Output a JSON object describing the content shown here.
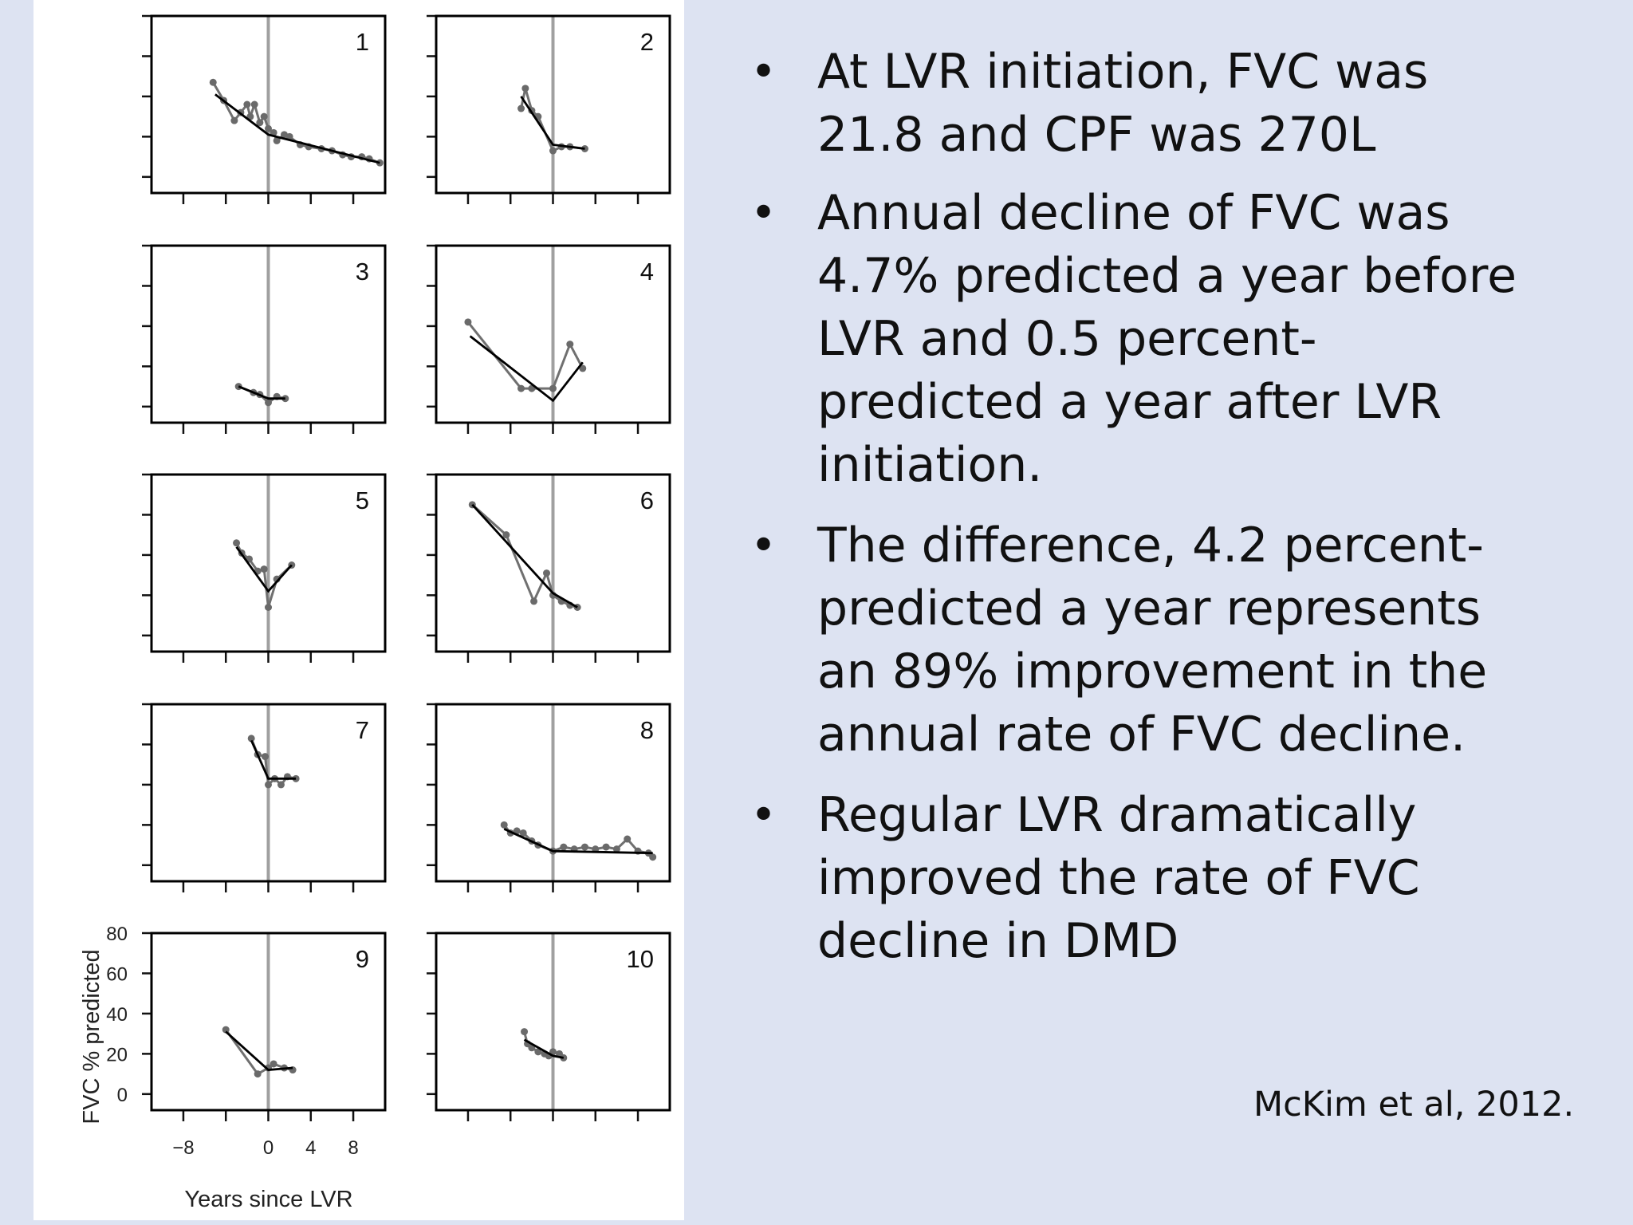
{
  "slide": {
    "bullets": [
      "At LVR initiation, FVC was 21.8 and CPF was 270L",
      "Annual decline of FVC was 4.7% predicted a year before LVR and 0.5 percent-predicted a year after LVR initiation.",
      "The difference, 4.2 percent-predicted a year represents an 89% improvement in the annual rate of FVC decline.",
      "Regular LVR dramatically improved the rate of FVC decline in DMD"
    ],
    "bullet_symbol": "•",
    "citation": "McKim et al, 2012."
  },
  "chart_data": {
    "type": "line",
    "layout": "small-multiples 5 rows x 2 columns",
    "xlabel": "Years since LVR",
    "ylabel": "FVC % predicted",
    "xlim": [
      -11,
      11
    ],
    "ylim": [
      -8,
      80
    ],
    "x_ticks": [
      -8,
      0,
      4,
      8
    ],
    "y_ticks": [
      0,
      20,
      40,
      60,
      80
    ],
    "x_tick_labels": [
      "−8",
      "0",
      "4",
      "8"
    ],
    "y_tick_labels": [
      "0",
      "20",
      "40",
      "60",
      "80"
    ],
    "reference_line_x": 0,
    "panels": [
      {
        "label": "1",
        "points": [
          [
            -5.2,
            47
          ],
          [
            -4.2,
            38
          ],
          [
            -3.2,
            28
          ],
          [
            -2.6,
            32
          ],
          [
            -2,
            36
          ],
          [
            -1.7,
            30
          ],
          [
            -1.3,
            36
          ],
          [
            -0.8,
            27
          ],
          [
            -0.4,
            30
          ],
          [
            0,
            24
          ],
          [
            0.5,
            22
          ],
          [
            0.8,
            18
          ],
          [
            1.5,
            21
          ],
          [
            2,
            20
          ],
          [
            3,
            16
          ],
          [
            3.8,
            15
          ],
          [
            5,
            14
          ],
          [
            6,
            13
          ],
          [
            7,
            11
          ],
          [
            7.8,
            10
          ],
          [
            8.8,
            10
          ],
          [
            9.5,
            9
          ],
          [
            10.5,
            7
          ]
        ],
        "fit": [
          [
            -5,
            41
          ],
          [
            0,
            21
          ],
          [
            10.5,
            7
          ]
        ]
      },
      {
        "label": "2",
        "points": [
          [
            -3,
            34
          ],
          [
            -2.6,
            44
          ],
          [
            -2,
            33
          ],
          [
            -1.4,
            30
          ],
          [
            0,
            13
          ],
          [
            0.8,
            15
          ],
          [
            1.6,
            15
          ],
          [
            3,
            14
          ]
        ],
        "fit": [
          [
            -3,
            40
          ],
          [
            0,
            16
          ],
          [
            3,
            14
          ]
        ]
      },
      {
        "label": "3",
        "points": [
          [
            -2.8,
            10
          ],
          [
            -1.4,
            7
          ],
          [
            -0.8,
            6
          ],
          [
            0,
            2
          ],
          [
            0.8,
            5
          ],
          [
            1.6,
            4
          ]
        ],
        "fit": [
          [
            -2.8,
            10
          ],
          [
            0,
            4
          ],
          [
            1.6,
            4
          ]
        ]
      },
      {
        "label": "4",
        "points": [
          [
            -8,
            42
          ],
          [
            -3,
            9
          ],
          [
            -2,
            9
          ],
          [
            0,
            9
          ],
          [
            1.6,
            31
          ],
          [
            2.8,
            19
          ]
        ],
        "fit": [
          [
            -7.8,
            35
          ],
          [
            0,
            3
          ],
          [
            2.8,
            22
          ]
        ]
      },
      {
        "label": "5",
        "points": [
          [
            -3,
            46
          ],
          [
            -2.5,
            41
          ],
          [
            -1.8,
            38
          ],
          [
            -1,
            32
          ],
          [
            -0.4,
            33
          ],
          [
            0,
            14
          ],
          [
            0.8,
            28
          ],
          [
            2.2,
            35
          ]
        ],
        "fit": [
          [
            -3,
            44
          ],
          [
            0,
            22
          ],
          [
            2.2,
            35
          ]
        ]
      },
      {
        "label": "6",
        "points": [
          [
            -7.6,
            65
          ],
          [
            -4.4,
            50
          ],
          [
            -1.8,
            17
          ],
          [
            -0.6,
            31
          ],
          [
            0,
            20
          ],
          [
            0.8,
            17
          ],
          [
            1.6,
            15
          ],
          [
            2.3,
            14
          ]
        ],
        "fit": [
          [
            -7.6,
            65
          ],
          [
            0,
            21
          ],
          [
            2.3,
            14
          ]
        ]
      },
      {
        "label": "7",
        "points": [
          [
            -1.6,
            63
          ],
          [
            -1,
            55
          ],
          [
            -0.3,
            54
          ],
          [
            0,
            40
          ],
          [
            0.6,
            43
          ],
          [
            1.2,
            40
          ],
          [
            1.8,
            44
          ],
          [
            2.6,
            43
          ]
        ],
        "fit": [
          [
            -1.6,
            62
          ],
          [
            0,
            43
          ],
          [
            2.6,
            43
          ]
        ]
      },
      {
        "label": "8",
        "points": [
          [
            -4.6,
            20
          ],
          [
            -4,
            16
          ],
          [
            -3.4,
            17
          ],
          [
            -2.8,
            16
          ],
          [
            -2,
            12
          ],
          [
            -1.4,
            10
          ],
          [
            0,
            7
          ],
          [
            1,
            9
          ],
          [
            2,
            8
          ],
          [
            3,
            9
          ],
          [
            4,
            8
          ],
          [
            5,
            9
          ],
          [
            6,
            8
          ],
          [
            7,
            13
          ],
          [
            8,
            7
          ],
          [
            9,
            6
          ],
          [
            9.4,
            4
          ]
        ],
        "fit": [
          [
            -4.6,
            18
          ],
          [
            0,
            7
          ],
          [
            9.4,
            6
          ]
        ]
      },
      {
        "label": "9",
        "points": [
          [
            -4,
            32
          ],
          [
            -1,
            10
          ],
          [
            0,
            13
          ],
          [
            0.5,
            15
          ],
          [
            1.5,
            13
          ],
          [
            2.3,
            12
          ]
        ],
        "fit": [
          [
            -4,
            31
          ],
          [
            0,
            12
          ],
          [
            2.3,
            13
          ]
        ]
      },
      {
        "label": "10",
        "points": [
          [
            -2.7,
            31
          ],
          [
            -2.4,
            25
          ],
          [
            -2,
            23
          ],
          [
            -1.4,
            21
          ],
          [
            -0.8,
            20
          ],
          [
            -0.4,
            19
          ],
          [
            0,
            21
          ],
          [
            0.6,
            20
          ],
          [
            1,
            18
          ]
        ],
        "fit": [
          [
            -2.7,
            27
          ],
          [
            0,
            19
          ],
          [
            1,
            18
          ]
        ]
      }
    ]
  }
}
